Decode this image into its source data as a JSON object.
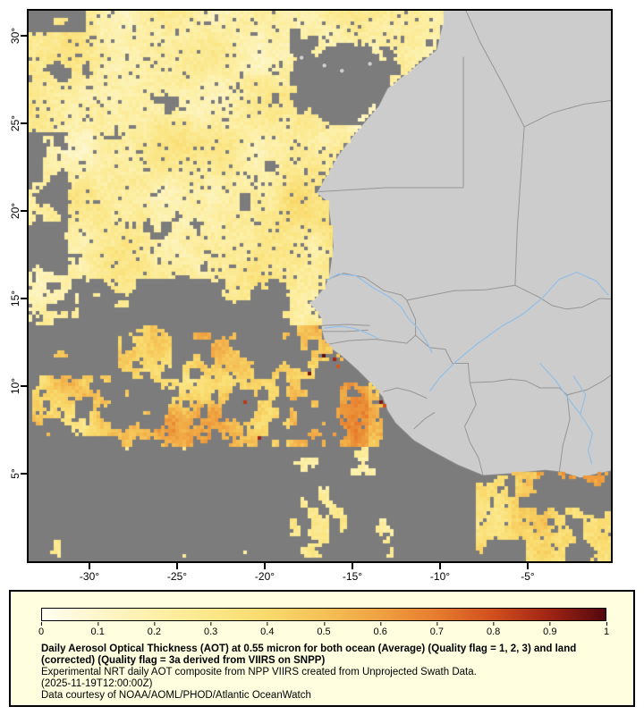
{
  "map": {
    "lat_labels": [
      "30°",
      "25°",
      "20°",
      "15°",
      "10°",
      "5°"
    ],
    "lon_labels": [
      "-30°",
      "-25°",
      "-20°",
      "-15°",
      "-10°",
      "-5°"
    ],
    "extent": {
      "lon_min": -33.5,
      "lon_max": -0.3,
      "lat_min": 0.0,
      "lat_max": 31.4
    },
    "colors": {
      "no_data_gray": "#7c7c7c",
      "land_gray": "#cccccc",
      "country_border": "#969696",
      "river_blue": "#92bfe7",
      "frame_black": "#000000"
    }
  },
  "legend": {
    "background": "#ffffe0",
    "range": {
      "min": 0,
      "max": 1
    },
    "tick_labels": [
      "0",
      "0.1",
      "0.2",
      "0.3",
      "0.4",
      "0.5",
      "0.6",
      "0.7",
      "0.8",
      "0.9",
      "1"
    ],
    "palette": [
      "#fffdf0",
      "#fdf6cb",
      "#fcf0a9",
      "#fbe789",
      "#f9d96b",
      "#f5c155",
      "#efa140",
      "#e67c2e",
      "#d14f1e",
      "#a02414",
      "#53080f"
    ],
    "title": "Daily Aerosol Optical Thickness (AOT) at 0.55 micron for both ocean (Average) (Quality flag = 1, 2, 3) and land (corrected) (Quality flag = 3a derived from VIIRS on SNPP)",
    "subtitle": "Experimental NRT daily AOT composite from NPP VIIRS created from Unprojected Swath Data.",
    "timestamp": "(2025-11-19T12:00:00Z)",
    "credit": "Data courtesy of NOAA/AOML/PHOD/Atlantic OceanWatch"
  }
}
